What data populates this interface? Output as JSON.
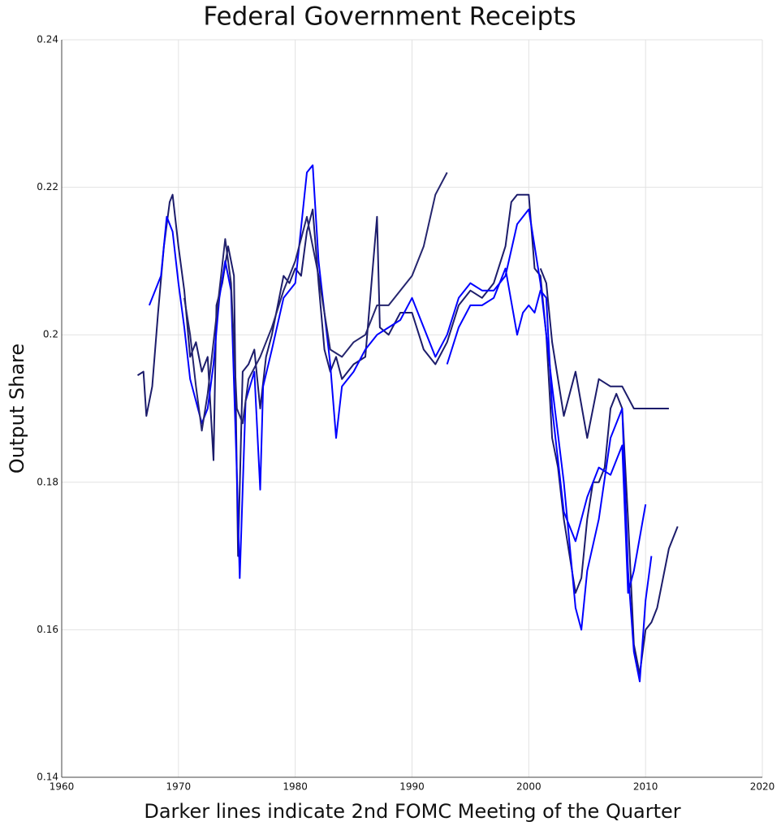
{
  "chart_data": {
    "type": "line",
    "title": "Federal Government Receipts",
    "x_label": "Darker lines indicate 2nd FOMC Meeting of the Quarter",
    "y_label": "Output Share",
    "xlim": [
      1960,
      2020
    ],
    "xticks": [
      1960,
      1970,
      1980,
      1990,
      2000,
      2010,
      2020
    ],
    "ylim": [
      0.14,
      0.24
    ],
    "yticks": [
      0.14,
      0.16,
      0.18,
      0.2,
      0.22,
      0.24
    ],
    "grid": true,
    "series": [
      {
        "color": "#1c1c6b",
        "x": [
          1966.5,
          1967,
          1967.25,
          1967.75,
          1968.25,
          1968.75,
          1969.25,
          1969.5,
          1970,
          1970.5,
          1971,
          1971.5,
          1972,
          1972.5,
          1973,
          1973.25,
          1973.75,
          1974.25,
          1974.75,
          1975.1,
          1975.5,
          1976,
          1976.5,
          1977,
          1977.5,
          1978,
          1978.5,
          1979,
          1979.5,
          1980,
          1980.5,
          1981,
          1981.5,
          1982,
          1982.5,
          1983,
          1983.5,
          1984,
          1985,
          1986,
          1987,
          1987.25,
          1988,
          1989,
          1990,
          1991,
          1992,
          1993,
          1994,
          1995,
          1996,
          1997,
          1998,
          1998.5,
          1999,
          2000,
          2000.5,
          2001,
          2001.5,
          2002,
          2002.5,
          2003,
          2003.5,
          2004,
          2004.5,
          2005,
          2005.5,
          2006,
          2006.5,
          2007,
          2007.5,
          2008,
          2008.5,
          2009,
          2009.5,
          2010,
          2010.5,
          2011,
          2011.5,
          2012,
          2012.75
        ],
        "values": [
          0.1945,
          0.195,
          0.189,
          0.193,
          0.203,
          0.212,
          0.218,
          0.219,
          0.212,
          0.206,
          0.197,
          0.199,
          0.195,
          0.197,
          0.183,
          0.204,
          0.207,
          0.212,
          0.208,
          0.17,
          0.195,
          0.196,
          0.198,
          0.19,
          0.197,
          0.2,
          0.204,
          0.208,
          0.207,
          0.209,
          0.208,
          0.214,
          0.217,
          0.207,
          0.198,
          0.195,
          0.197,
          0.194,
          0.196,
          0.197,
          0.216,
          0.201,
          0.2,
          0.203,
          0.203,
          0.198,
          0.196,
          0.199,
          0.204,
          0.206,
          0.205,
          0.207,
          0.212,
          0.218,
          0.219,
          0.219,
          0.209,
          0.208,
          0.2,
          0.186,
          0.182,
          0.175,
          0.17,
          0.165,
          0.167,
          0.175,
          0.18,
          0.18,
          0.182,
          0.19,
          0.192,
          0.19,
          0.175,
          0.158,
          0.154,
          0.16,
          0.161,
          0.163,
          0.167,
          0.171,
          0.174
        ]
      },
      {
        "color": "#0000ff",
        "x": [
          1967.5,
          1968,
          1968.5,
          1969,
          1969.5,
          1970,
          1970.5,
          1971,
          1971.5,
          1972,
          1972.5,
          1973,
          1973.5,
          1974,
          1974.5,
          1975,
          1975.25,
          1975.75,
          1976.5,
          1977,
          1977.25,
          1978,
          1979,
          1980,
          1981,
          1981.5,
          1982,
          1983,
          1983.5,
          1984,
          1985,
          1986,
          1987,
          1988,
          1989,
          1990,
          1991,
          1992,
          1993,
          1994,
          1995,
          1996,
          1997,
          1998,
          1999,
          2000,
          2001,
          2002,
          2003,
          2004,
          2004.5,
          2005,
          2006,
          2007,
          2008,
          2008.5,
          2009,
          2009.5,
          2010,
          2010.5
        ],
        "values": [
          0.204,
          0.206,
          0.208,
          0.216,
          0.214,
          0.207,
          0.201,
          0.194,
          0.191,
          0.188,
          0.19,
          0.196,
          0.205,
          0.21,
          0.206,
          0.181,
          0.167,
          0.191,
          0.195,
          0.179,
          0.193,
          0.198,
          0.205,
          0.207,
          0.222,
          0.223,
          0.21,
          0.196,
          0.186,
          0.193,
          0.195,
          0.198,
          0.2,
          0.201,
          0.202,
          0.205,
          0.201,
          0.197,
          0.2,
          0.205,
          0.207,
          0.206,
          0.206,
          0.208,
          0.215,
          0.217,
          0.207,
          0.193,
          0.18,
          0.163,
          0.16,
          0.168,
          0.175,
          0.186,
          0.19,
          0.168,
          0.157,
          0.153,
          0.164,
          0.17
        ]
      },
      {
        "color": "#25256e",
        "x": [
          1970.5,
          1971,
          1971.5,
          1972,
          1972.5,
          1973,
          1973.5,
          1974,
          1974.5,
          1975,
          1975.5,
          1976,
          1977,
          1978,
          1979,
          1980,
          1981,
          1982,
          1983,
          1984,
          1985,
          1986,
          1987,
          1988,
          1989,
          1990,
          1991,
          1992,
          1993
        ],
        "values": [
          0.205,
          0.2,
          0.193,
          0.187,
          0.192,
          0.199,
          0.206,
          0.213,
          0.207,
          0.19,
          0.188,
          0.194,
          0.197,
          0.201,
          0.206,
          0.21,
          0.216,
          0.208,
          0.198,
          0.197,
          0.199,
          0.2,
          0.204,
          0.204,
          0.206,
          0.208,
          0.212,
          0.219,
          0.222
        ]
      },
      {
        "color": "#0000ff",
        "x": [
          1993,
          1994,
          1995,
          1996,
          1997,
          1998,
          1999,
          1999.5,
          2000,
          2000.5,
          2001,
          2001.5,
          2002,
          2003,
          2004,
          2005,
          2006,
          2007,
          2008,
          2008.5,
          2009,
          2010
        ],
        "values": [
          0.196,
          0.201,
          0.204,
          0.204,
          0.205,
          0.209,
          0.2,
          0.203,
          0.204,
          0.203,
          0.206,
          0.205,
          0.19,
          0.176,
          0.172,
          0.178,
          0.182,
          0.181,
          0.185,
          0.165,
          0.168,
          0.177
        ]
      },
      {
        "color": "#1c1c6b",
        "x": [
          2001,
          2001.5,
          2002,
          2003,
          2004,
          2005,
          2006,
          2007,
          2008,
          2009,
          2010,
          2011,
          2012
        ],
        "values": [
          0.209,
          0.207,
          0.199,
          0.189,
          0.195,
          0.186,
          0.194,
          0.193,
          0.193,
          0.19,
          0.19,
          0.19,
          0.19
        ]
      }
    ]
  }
}
